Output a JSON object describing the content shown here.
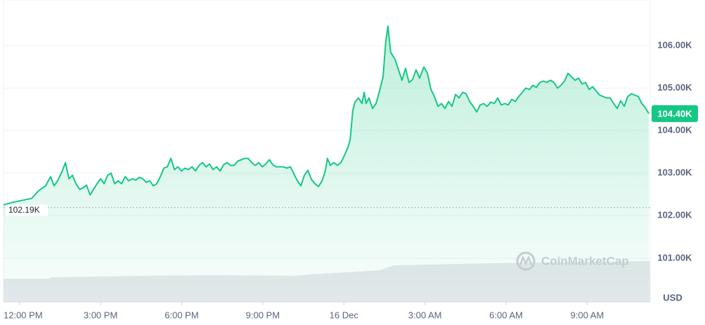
{
  "chart_data": {
    "type": "area-line",
    "currency": "USD",
    "watermark": "CoinMarketCap",
    "color": "#16c784",
    "grid": true,
    "xlim": [
      -0.59,
      23.33
    ],
    "ylim": [
      100000,
      107070
    ],
    "xticks": [
      {
        "value": 0,
        "label": "12:00 PM"
      },
      {
        "value": 3,
        "label": "3:00 PM"
      },
      {
        "value": 6,
        "label": "6:00 PM"
      },
      {
        "value": 9,
        "label": "9:00 PM"
      },
      {
        "value": 12,
        "label": "16 Dec"
      },
      {
        "value": 15,
        "label": "3:00 AM"
      },
      {
        "value": 18,
        "label": "6:00 AM"
      },
      {
        "value": 21,
        "label": "9:00 AM"
      }
    ],
    "yticks": [
      {
        "value": 101000,
        "label": "101.00K"
      },
      {
        "value": 102000,
        "label": "102.00K"
      },
      {
        "value": 103000,
        "label": "103.00K"
      },
      {
        "value": 104000,
        "label": "104.00K"
      },
      {
        "value": 105000,
        "label": "105.00K"
      },
      {
        "value": 106000,
        "label": "106.00K"
      }
    ],
    "open_price": {
      "value": 102190,
      "label": "102.19K"
    },
    "current_price": {
      "value": 104400,
      "label": "104.40K"
    },
    "x": [
      -0.59,
      -0.2,
      0.19,
      0.45,
      0.71,
      0.97,
      1.15,
      1.28,
      1.41,
      1.57,
      1.7,
      1.83,
      1.96,
      2.09,
      2.22,
      2.35,
      2.48,
      2.61,
      2.74,
      2.87,
      3,
      3.13,
      3.26,
      3.39,
      3.52,
      3.65,
      3.78,
      3.91,
      4.04,
      4.17,
      4.3,
      4.43,
      4.56,
      4.69,
      4.82,
      4.95,
      5.08,
      5.21,
      5.34,
      5.47,
      5.6,
      5.73,
      5.86,
      5.99,
      6.12,
      6.25,
      6.38,
      6.51,
      6.64,
      6.77,
      6.9,
      7.03,
      7.16,
      7.29,
      7.42,
      7.55,
      7.68,
      7.81,
      7.94,
      8.07,
      8.2,
      8.33,
      8.46,
      8.59,
      8.72,
      8.85,
      8.98,
      9.11,
      9.24,
      9.37,
      9.5,
      9.63,
      9.76,
      9.89,
      10.02,
      10.15,
      10.28,
      10.41,
      10.54,
      10.67,
      10.8,
      10.93,
      11.06,
      11.19,
      11.32,
      11.39,
      11.5,
      11.63,
      11.76,
      11.89,
      12.02,
      12.15,
      12.23,
      12.33,
      12.41,
      12.54,
      12.67,
      12.75,
      12.82,
      12.93,
      13.06,
      13.19,
      13.32,
      13.45,
      13.55,
      13.63,
      13.73,
      13.89,
      14.02,
      14.15,
      14.28,
      14.41,
      14.54,
      14.67,
      14.8,
      14.96,
      15.09,
      15.22,
      15.35,
      15.48,
      15.61,
      15.74,
      15.87,
      16,
      16.13,
      16.26,
      16.39,
      16.52,
      16.65,
      16.78,
      16.91,
      17.04,
      17.17,
      17.3,
      17.43,
      17.56,
      17.69,
      17.82,
      17.95,
      18.08,
      18.21,
      18.34,
      18.47,
      18.6,
      18.73,
      18.86,
      18.99,
      19.12,
      19.25,
      19.38,
      19.51,
      19.64,
      19.77,
      19.9,
      20.03,
      20.16,
      20.29,
      20.42,
      20.55,
      20.68,
      20.81,
      20.94,
      21.07,
      21.2,
      21.33,
      21.46,
      21.59,
      21.72,
      21.85,
      21.98,
      22.11,
      22.24,
      22.37,
      22.5,
      22.63,
      22.76,
      22.89,
      23.02,
      23.15,
      23.28
    ],
    "values": [
      102256,
      102322,
      102372,
      102405,
      102587,
      102703,
      102918,
      102703,
      102818,
      103033,
      103248,
      102868,
      102951,
      102752,
      102620,
      102653,
      102719,
      102488,
      102620,
      102752,
      102868,
      102752,
      102951,
      103000,
      102752,
      102818,
      102752,
      102918,
      102818,
      102868,
      102835,
      102901,
      102868,
      102785,
      102818,
      102703,
      102752,
      102918,
      103116,
      103149,
      103347,
      103083,
      103149,
      103050,
      103116,
      103083,
      103149,
      103050,
      103182,
      103248,
      103149,
      103215,
      103083,
      103149,
      103050,
      103198,
      103248,
      103182,
      103182,
      103281,
      103314,
      103347,
      103347,
      103248,
      103182,
      103248,
      103149,
      103215,
      103314,
      103198,
      103149,
      103149,
      103149,
      103116,
      103149,
      102984,
      102818,
      102703,
      102951,
      103066,
      102851,
      102752,
      102686,
      102818,
      103066,
      103347,
      103182,
      103248,
      103182,
      103248,
      103413,
      103612,
      103777,
      104471,
      104670,
      104769,
      104637,
      104901,
      104637,
      104769,
      104521,
      104637,
      104934,
      105265,
      106091,
      106455,
      105843,
      105678,
      105430,
      105182,
      105463,
      105132,
      105199,
      105430,
      105232,
      105496,
      105347,
      104967,
      104802,
      104570,
      104637,
      104521,
      104686,
      104570,
      104852,
      104769,
      104901,
      104868,
      104686,
      104570,
      104438,
      104604,
      104637,
      104570,
      104670,
      104637,
      104769,
      104604,
      104637,
      104604,
      104736,
      104686,
      104802,
      104901,
      105000,
      104967,
      105066,
      105017,
      105132,
      105165,
      105132,
      105182,
      105132,
      105000,
      105066,
      105165,
      105347,
      105265,
      105182,
      105232,
      105099,
      105132,
      104967,
      105033,
      104934,
      104835,
      104802,
      104769,
      104769,
      104637,
      104521,
      104703,
      104570,
      104802,
      104868,
      104835,
      104802,
      104637,
      104538,
      104400
    ]
  }
}
